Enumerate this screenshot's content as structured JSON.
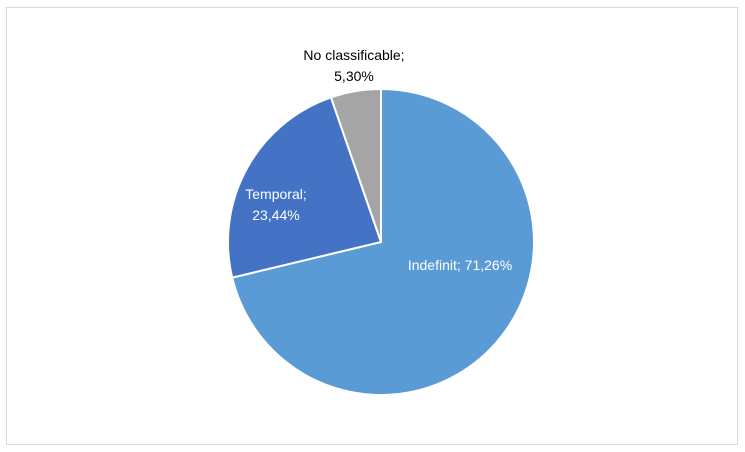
{
  "chart_data": {
    "type": "pie",
    "slices": [
      {
        "label": "Indefinit",
        "value": 71.26,
        "display": "71,26%",
        "color": "#5b9bd5"
      },
      {
        "label": "Temporal",
        "value": 23.44,
        "display": "23,44%",
        "color": "#4472c4"
      },
      {
        "label": "No classificable",
        "value": 5.3,
        "display": "5,30%",
        "color": "#a5a5a5"
      }
    ],
    "data_labels": {
      "indefinit": "Indefinit; 71,26%",
      "temporal_line1": "Temporal;",
      "temporal_line2": "23,44%",
      "noclass_line1": "No classificable;",
      "noclass_line2": "5,30%"
    },
    "start_angle": "12 o'clock",
    "direction": "clockwise",
    "legend": "none"
  }
}
